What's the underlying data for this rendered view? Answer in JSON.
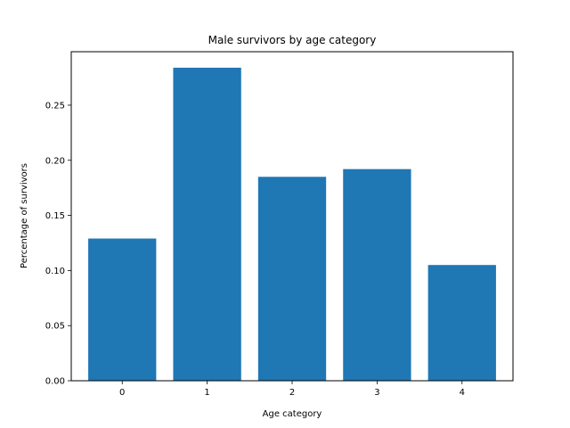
{
  "chart_data": {
    "type": "bar",
    "title": "Male survivors by age category",
    "xlabel": "Age category",
    "ylabel": "Percentage of survivors",
    "categories": [
      "0",
      "1",
      "2",
      "3",
      "4"
    ],
    "values": [
      0.129,
      0.284,
      0.185,
      0.192,
      0.105
    ],
    "ylim": [
      0,
      0.2985
    ],
    "xlim": [
      -0.6,
      4.6
    ],
    "yticks": [
      0.0,
      0.05,
      0.1,
      0.15,
      0.2,
      0.25
    ],
    "ytick_labels": [
      "0.00",
      "0.05",
      "0.10",
      "0.15",
      "0.20",
      "0.25"
    ],
    "bar_color": "#1f77b4",
    "grid": false,
    "legend": "none"
  }
}
